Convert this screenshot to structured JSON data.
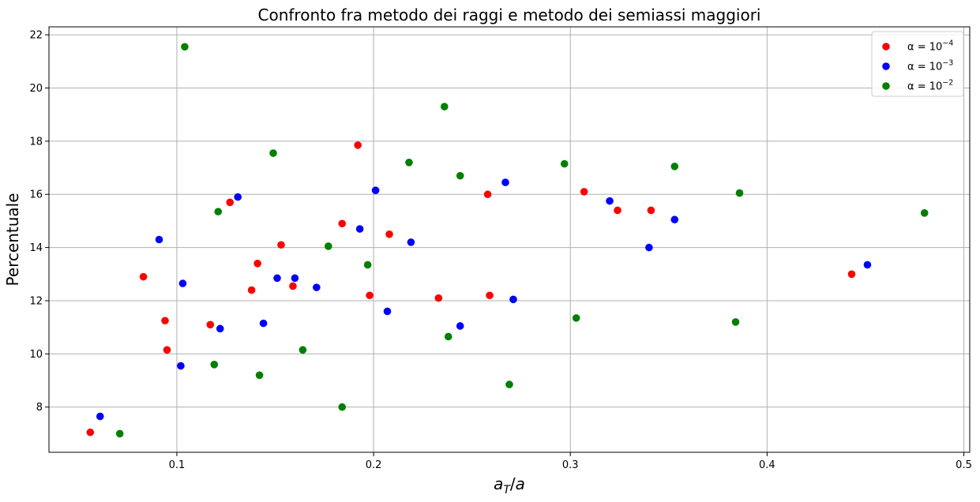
{
  "chart_data": {
    "type": "scatter",
    "title": "Confronto fra metodo dei raggi e metodo dei semiassi maggiori",
    "xlabel": "a_T/a",
    "ylabel": "Percentuale",
    "xlim": [
      0.035,
      0.503
    ],
    "ylim": [
      6.3,
      22.3
    ],
    "xticks": [
      0.1,
      0.2,
      0.3,
      0.4,
      0.5
    ],
    "xtick_labels": [
      "0.1",
      "0.2",
      "0.3",
      "0.4",
      "0.5"
    ],
    "yticks": [
      8,
      10,
      12,
      14,
      16,
      18,
      20,
      22
    ],
    "ytick_labels": [
      "8",
      "10",
      "12",
      "14",
      "16",
      "18",
      "20",
      "22"
    ],
    "grid": true,
    "legend_position": "top-right",
    "series": [
      {
        "name": "α = 10^−4",
        "label_base": "α = 10",
        "label_exp": "−4",
        "color": "#ff0000",
        "points": [
          [
            0.056,
            7.05
          ],
          [
            0.083,
            12.9
          ],
          [
            0.094,
            11.25
          ],
          [
            0.095,
            10.15
          ],
          [
            0.117,
            11.1
          ],
          [
            0.127,
            15.7
          ],
          [
            0.138,
            12.4
          ],
          [
            0.141,
            13.4
          ],
          [
            0.153,
            14.1
          ],
          [
            0.159,
            12.55
          ],
          [
            0.184,
            14.9
          ],
          [
            0.192,
            17.85
          ],
          [
            0.198,
            12.2
          ],
          [
            0.208,
            14.5
          ],
          [
            0.233,
            12.1
          ],
          [
            0.258,
            16.0
          ],
          [
            0.259,
            12.2
          ],
          [
            0.307,
            16.1
          ],
          [
            0.324,
            15.4
          ],
          [
            0.341,
            15.4
          ],
          [
            0.443,
            13.0
          ]
        ]
      },
      {
        "name": "α = 10^−3",
        "label_base": "α = 10",
        "label_exp": "−3",
        "color": "#0000ff",
        "points": [
          [
            0.061,
            7.65
          ],
          [
            0.091,
            14.3
          ],
          [
            0.102,
            9.55
          ],
          [
            0.103,
            12.65
          ],
          [
            0.122,
            10.95
          ],
          [
            0.131,
            15.9
          ],
          [
            0.144,
            11.15
          ],
          [
            0.151,
            12.85
          ],
          [
            0.16,
            12.85
          ],
          [
            0.171,
            12.5
          ],
          [
            0.193,
            14.7
          ],
          [
            0.201,
            16.15
          ],
          [
            0.207,
            11.6
          ],
          [
            0.219,
            14.2
          ],
          [
            0.244,
            11.05
          ],
          [
            0.267,
            16.45
          ],
          [
            0.271,
            12.05
          ],
          [
            0.32,
            15.75
          ],
          [
            0.34,
            14.0
          ],
          [
            0.353,
            15.05
          ],
          [
            0.451,
            13.35
          ]
        ]
      },
      {
        "name": "α = 10^−2",
        "label_base": "α = 10",
        "label_exp": "−2",
        "color": "#008000",
        "points": [
          [
            0.071,
            7.0
          ],
          [
            0.104,
            21.55
          ],
          [
            0.119,
            9.6
          ],
          [
            0.121,
            15.35
          ],
          [
            0.142,
            9.2
          ],
          [
            0.149,
            17.55
          ],
          [
            0.164,
            10.15
          ],
          [
            0.177,
            14.05
          ],
          [
            0.184,
            8.0
          ],
          [
            0.197,
            13.35
          ],
          [
            0.218,
            17.2
          ],
          [
            0.236,
            19.3
          ],
          [
            0.238,
            10.65
          ],
          [
            0.244,
            16.7
          ],
          [
            0.269,
            8.85
          ],
          [
            0.297,
            17.15
          ],
          [
            0.303,
            11.35
          ],
          [
            0.353,
            17.05
          ],
          [
            0.384,
            11.2
          ],
          [
            0.386,
            16.05
          ],
          [
            0.48,
            15.3
          ]
        ]
      }
    ]
  }
}
